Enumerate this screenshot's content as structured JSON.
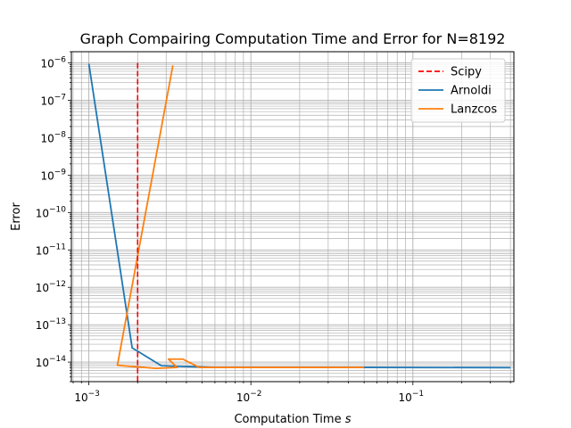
{
  "chart_data": {
    "type": "line",
    "title": "Graph Compairing Computation Time and Error for N=8192",
    "xlabel": "Computation Time",
    "xlabel_var": "s",
    "ylabel": "Error",
    "xscale": "log",
    "yscale": "log",
    "xlim": [
      0.00078,
      0.42
    ],
    "ylim": [
      3e-15,
      2e-06
    ],
    "xtick_labels": [
      {
        "value": 0.001,
        "base": "10",
        "exp": "−3"
      },
      {
        "value": 0.01,
        "base": "10",
        "exp": "−2"
      },
      {
        "value": 0.1,
        "base": "10",
        "exp": "−1"
      }
    ],
    "ytick_labels": [
      {
        "value": 1e-06,
        "base": "10",
        "exp": "−6"
      },
      {
        "value": 1e-07,
        "base": "10",
        "exp": "−7"
      },
      {
        "value": 1e-08,
        "base": "10",
        "exp": "−8"
      },
      {
        "value": 1e-09,
        "base": "10",
        "exp": "−9"
      },
      {
        "value": 1e-10,
        "base": "10",
        "exp": "−10"
      },
      {
        "value": 1e-11,
        "base": "10",
        "exp": "−11"
      },
      {
        "value": 1e-12,
        "base": "10",
        "exp": "−12"
      },
      {
        "value": 1e-13,
        "base": "10",
        "exp": "−13"
      },
      {
        "value": 1e-14,
        "base": "10",
        "exp": "−14"
      }
    ],
    "grid": "major+minor",
    "legend_position": "top-right",
    "vline": {
      "name": "Scipy",
      "x": 0.002,
      "color": "#ff0000",
      "style": "dashed"
    },
    "series": [
      {
        "name": "Arnoldi",
        "color": "#1f77b4",
        "points": [
          [
            0.001,
            9.5e-07
          ],
          [
            0.00185,
            2.4e-14
          ],
          [
            0.0028,
            8e-15
          ],
          [
            0.006,
            7.2e-15
          ],
          [
            0.05,
            7.2e-15
          ],
          [
            0.4,
            7.1e-15
          ]
        ]
      },
      {
        "name": "Lanzcos",
        "color": "#ff7f0e",
        "points": [
          [
            0.0033,
            8.6e-07
          ],
          [
            0.0015,
            8.2e-15
          ],
          [
            0.0026,
            6.8e-15
          ],
          [
            0.0035,
            7.2e-15
          ],
          [
            0.0031,
            1.2e-14
          ],
          [
            0.0038,
            1.2e-14
          ],
          [
            0.0048,
            7.2e-15
          ],
          [
            0.05,
            7.2e-15
          ]
        ]
      }
    ]
  }
}
